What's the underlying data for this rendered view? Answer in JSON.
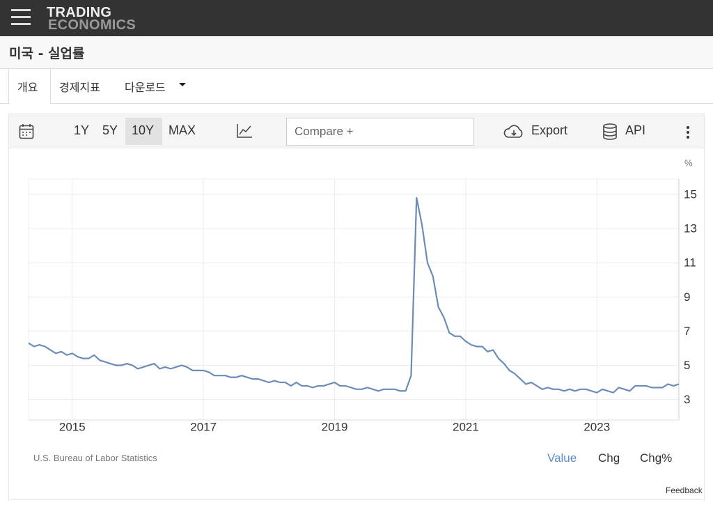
{
  "header": {
    "logo_line1": "TRADING",
    "logo_line2": "ECONOMICS"
  },
  "page_title": "미국 - 실업률",
  "tabs": [
    "개요",
    "경제지표",
    "다운로드"
  ],
  "toolbar": {
    "ranges": [
      "1Y",
      "5Y",
      "10Y",
      "MAX"
    ],
    "compare_placeholder": "Compare +",
    "export": "Export",
    "api": "API"
  },
  "chart_data": {
    "type": "line",
    "y_unit": "%",
    "source": "U.S. Bureau of Labor Statistics",
    "color": "#6b8cb8",
    "grid": true,
    "ylim": [
      1.8,
      15.9
    ],
    "yticks": [
      3,
      5,
      7,
      9,
      11,
      13,
      15
    ],
    "categories": [
      null,
      null,
      null,
      null,
      null,
      null,
      null,
      null,
      "2015",
      null,
      null,
      null,
      null,
      null,
      null,
      null,
      null,
      null,
      null,
      null,
      null,
      null,
      null,
      null,
      null,
      null,
      null,
      null,
      null,
      null,
      null,
      null,
      "2017",
      null,
      null,
      null,
      null,
      null,
      null,
      null,
      null,
      null,
      null,
      null,
      null,
      null,
      null,
      null,
      null,
      null,
      null,
      null,
      null,
      null,
      null,
      null,
      "2019",
      null,
      null,
      null,
      null,
      null,
      null,
      null,
      null,
      null,
      null,
      null,
      null,
      null,
      null,
      null,
      null,
      null,
      null,
      null,
      null,
      null,
      null,
      null,
      "2021",
      null,
      null,
      null,
      null,
      null,
      null,
      null,
      null,
      null,
      null,
      null,
      null,
      null,
      null,
      null,
      null,
      null,
      null,
      null,
      null,
      null,
      null,
      null,
      "2023",
      null,
      null,
      null,
      null,
      null,
      null,
      null,
      null,
      null,
      null,
      null,
      null,
      null,
      null,
      null
    ],
    "values": [
      6.3,
      6.1,
      6.2,
      6.1,
      5.9,
      5.7,
      5.8,
      5.6,
      5.7,
      5.5,
      5.4,
      5.4,
      5.6,
      5.3,
      5.2,
      5.1,
      5.0,
      5.0,
      5.1,
      5.0,
      4.8,
      4.9,
      5.0,
      5.1,
      4.8,
      4.9,
      4.8,
      4.9,
      5.0,
      4.9,
      4.7,
      4.7,
      4.7,
      4.6,
      4.4,
      4.4,
      4.4,
      4.3,
      4.3,
      4.4,
      4.3,
      4.2,
      4.2,
      4.1,
      4.0,
      4.1,
      4.0,
      4.0,
      3.8,
      4.0,
      3.8,
      3.8,
      3.7,
      3.8,
      3.8,
      3.9,
      4.0,
      3.8,
      3.8,
      3.7,
      3.6,
      3.6,
      3.7,
      3.6,
      3.5,
      3.6,
      3.6,
      3.6,
      3.5,
      3.5,
      4.4,
      14.8,
      13.2,
      11.0,
      10.2,
      8.4,
      7.8,
      6.9,
      6.7,
      6.7,
      6.4,
      6.2,
      6.1,
      6.1,
      5.8,
      5.9,
      5.4,
      5.1,
      4.7,
      4.5,
      4.2,
      3.9,
      4.0,
      3.8,
      3.6,
      3.7,
      3.6,
      3.6,
      3.5,
      3.6,
      3.5,
      3.6,
      3.6,
      3.5,
      3.4,
      3.6,
      3.5,
      3.4,
      3.7,
      3.6,
      3.5,
      3.8,
      3.8,
      3.8,
      3.7,
      3.7,
      3.7,
      3.9,
      3.8,
      3.9
    ]
  },
  "footer": {
    "views": [
      "Value",
      "Chg",
      "Chg%"
    ],
    "feedback": "Feedback"
  }
}
